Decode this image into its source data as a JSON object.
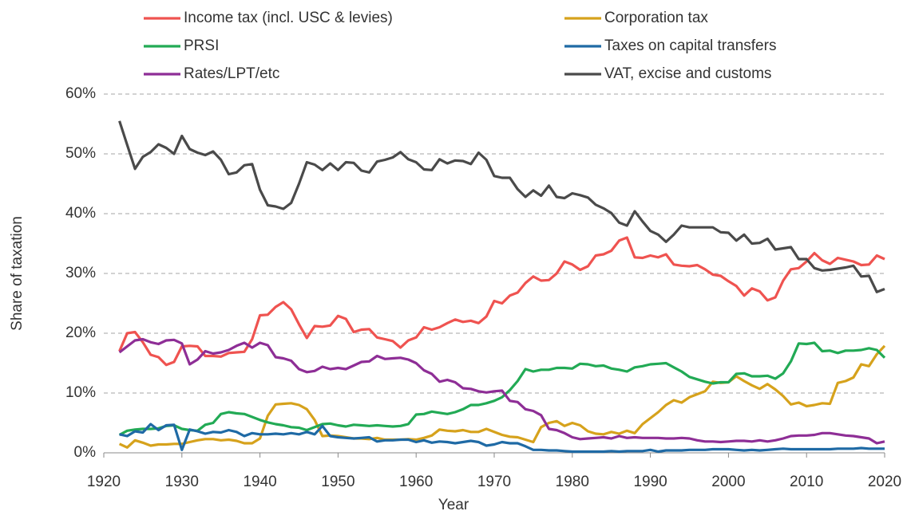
{
  "chart_data": {
    "type": "line",
    "x_label": "Year",
    "y_label": "Share of taxation",
    "x": [
      1922,
      1923,
      1924,
      1925,
      1926,
      1927,
      1928,
      1929,
      1930,
      1931,
      1932,
      1933,
      1934,
      1935,
      1936,
      1937,
      1938,
      1939,
      1940,
      1941,
      1942,
      1943,
      1944,
      1945,
      1946,
      1947,
      1948,
      1949,
      1950,
      1951,
      1952,
      1953,
      1954,
      1955,
      1956,
      1957,
      1958,
      1959,
      1960,
      1961,
      1962,
      1963,
      1964,
      1965,
      1966,
      1967,
      1968,
      1969,
      1970,
      1971,
      1972,
      1973,
      1974,
      1975,
      1976,
      1977,
      1978,
      1979,
      1980,
      1981,
      1982,
      1983,
      1984,
      1985,
      1986,
      1987,
      1988,
      1989,
      1990,
      1991,
      1992,
      1993,
      1994,
      1995,
      1996,
      1997,
      1998,
      1999,
      2000,
      2001,
      2002,
      2003,
      2004,
      2005,
      2006,
      2007,
      2008,
      2009,
      2010,
      2011,
      2012,
      2013,
      2014,
      2015,
      2016,
      2017,
      2018,
      2019,
      2020
    ],
    "series": [
      {
        "name": "Income tax (incl. USC & levies)",
        "color": "#ef5350",
        "values": [
          17,
          20,
          20.2,
          18.5,
          16.4,
          16,
          14.7,
          15.2,
          17.8,
          17.9,
          17.8,
          16.2,
          16.2,
          16.1,
          16.7,
          16.8,
          16.9,
          19,
          23,
          23.1,
          24.4,
          25.2,
          24,
          21.5,
          19.2,
          21.2,
          21.1,
          21.3,
          22.9,
          22.4,
          20.2,
          20.6,
          20.7,
          19.3,
          19,
          18.7,
          17.6,
          18.8,
          19.3,
          21,
          20.6,
          21,
          21.7,
          22.3,
          21.9,
          22.1,
          21.7,
          22.8,
          25.4,
          25,
          26.3,
          26.8,
          28.4,
          29.5,
          28.8,
          28.9,
          30,
          32,
          31.5,
          30.6,
          31.2,
          33,
          33.2,
          33.8,
          35.5,
          36,
          32.7,
          32.6,
          33,
          32.7,
          33.2,
          31.5,
          31.3,
          31.2,
          31.4,
          30.7,
          29.8,
          29.6,
          28.7,
          27.9,
          26.3,
          27.5,
          27,
          25.5,
          26,
          28.8,
          30.7,
          30.9,
          32,
          33.4,
          32.2,
          31.6,
          32.6,
          32.3,
          32,
          31.4,
          31.5,
          33,
          32.4
        ]
      },
      {
        "name": "Corporation tax",
        "color": "#d6a21c",
        "values": [
          1.5,
          0.9,
          2.1,
          1.7,
          1.2,
          1.4,
          1.4,
          1.5,
          1.5,
          1.8,
          2.1,
          2.3,
          2.3,
          2.1,
          2.2,
          2,
          1.6,
          1.6,
          2.4,
          6.2,
          8.1,
          8.2,
          8.3,
          8,
          7.3,
          5.5,
          2.8,
          2.9,
          2.8,
          2.6,
          2.4,
          2.4,
          2.3,
          2.5,
          2.2,
          2.2,
          2.2,
          2.3,
          2.2,
          2.5,
          2.9,
          3.9,
          3.7,
          3.6,
          3.8,
          3.5,
          3.5,
          4,
          3.5,
          3,
          2.7,
          2.6,
          2.2,
          1.8,
          4.3,
          5,
          5.3,
          4.5,
          5,
          4.6,
          3.6,
          3.2,
          3.1,
          3.5,
          3.2,
          3.7,
          3.3,
          4.8,
          5.8,
          6.8,
          8,
          8.8,
          8.4,
          9.3,
          9.8,
          10.3,
          11.9,
          11.7,
          11.8,
          12.8,
          12,
          11.3,
          10.7,
          11.5,
          10.6,
          9.5,
          8.1,
          8.4,
          7.8,
          8,
          8.3,
          8.2,
          11.7,
          12,
          12.6,
          14.8,
          14.5,
          16.5,
          17.9
        ]
      },
      {
        "name": "PRSI",
        "color": "#22aa55",
        "values": [
          3,
          3.7,
          3.9,
          4,
          4,
          4.1,
          4.5,
          4.6,
          4,
          3.8,
          3.7,
          4.7,
          5,
          6.5,
          6.8,
          6.6,
          6.5,
          6,
          5.5,
          5.1,
          4.8,
          4.6,
          4.3,
          4.2,
          3.8,
          4.3,
          4.8,
          4.9,
          4.6,
          4.4,
          4.7,
          4.6,
          4.5,
          4.6,
          4.5,
          4.4,
          4.5,
          4.8,
          6.4,
          6.5,
          6.9,
          6.7,
          6.5,
          6.8,
          7.3,
          8,
          8,
          8.3,
          8.7,
          9.3,
          10.5,
          12,
          14,
          13.6,
          13.9,
          13.9,
          14.2,
          14.2,
          14.1,
          14.9,
          14.8,
          14.5,
          14.6,
          14.1,
          13.9,
          13.6,
          14.3,
          14.5,
          14.8,
          14.9,
          15,
          14.3,
          13.6,
          12.7,
          12.3,
          11.9,
          11.6,
          11.8,
          11.8,
          13.2,
          13.3,
          12.8,
          12.8,
          12.9,
          12.4,
          13.3,
          15.3,
          18.3,
          18.2,
          18.4,
          17,
          17.1,
          16.7,
          17.1,
          17.1,
          17.2,
          17.5,
          17.2,
          15.9
        ]
      },
      {
        "name": "Taxes on capital transfers",
        "color": "#1f6aa5",
        "values": [
          3.1,
          2.8,
          3.6,
          3.4,
          4.8,
          3.8,
          4.6,
          4.7,
          0.5,
          3.9,
          3.6,
          3.2,
          3.5,
          3.4,
          3.8,
          3.5,
          2.8,
          3.3,
          3.1,
          3.1,
          3.2,
          3.1,
          3.3,
          3.1,
          3.5,
          3.1,
          4.5,
          2.8,
          2.6,
          2.5,
          2.4,
          2.5,
          2.6,
          1.9,
          2.1,
          2.1,
          2.2,
          2.2,
          1.8,
          2.1,
          1.7,
          1.9,
          1.8,
          1.6,
          1.8,
          2,
          1.8,
          1.2,
          1.4,
          1.8,
          1.6,
          1.6,
          1.1,
          0.5,
          0.5,
          0.4,
          0.4,
          0.3,
          0.2,
          0.2,
          0.2,
          0.2,
          0.2,
          0.3,
          0.2,
          0.3,
          0.3,
          0.3,
          0.5,
          0.2,
          0.4,
          0.4,
          0.4,
          0.5,
          0.5,
          0.5,
          0.6,
          0.6,
          0.6,
          0.5,
          0.4,
          0.5,
          0.4,
          0.5,
          0.6,
          0.7,
          0.6,
          0.6,
          0.6,
          0.6,
          0.6,
          0.6,
          0.7,
          0.7,
          0.7,
          0.8,
          0.7,
          0.7,
          0.7
        ]
      },
      {
        "name": "Rates/LPT/etc",
        "color": "#8e2e96",
        "values": [
          16.8,
          17.8,
          18.8,
          19,
          18.5,
          18.2,
          18.8,
          18.9,
          18.3,
          14.8,
          15.6,
          17,
          16.6,
          16.8,
          17.2,
          17.9,
          18.4,
          17.6,
          18.4,
          18,
          16,
          15.8,
          15.4,
          14,
          13.5,
          13.7,
          14.4,
          14,
          14.2,
          14,
          14.6,
          15.2,
          15.3,
          16.2,
          15.7,
          15.8,
          15.9,
          15.6,
          15,
          13.8,
          13.2,
          11.9,
          12.2,
          11.8,
          10.8,
          10.7,
          10.3,
          10.1,
          10.3,
          10.4,
          8.7,
          8.5,
          7.3,
          7,
          6.3,
          4,
          3.8,
          3.3,
          2.6,
          2.3,
          2.4,
          2.5,
          2.6,
          2.4,
          2.8,
          2.5,
          2.6,
          2.5,
          2.5,
          2.5,
          2.4,
          2.4,
          2.5,
          2.4,
          2.1,
          1.9,
          1.9,
          1.8,
          1.9,
          2,
          2,
          1.9,
          2.1,
          1.9,
          2.1,
          2.4,
          2.8,
          2.9,
          2.9,
          3,
          3.3,
          3.3,
          3.1,
          2.9,
          2.8,
          2.6,
          2.4,
          1.6,
          1.9
        ]
      },
      {
        "name": "VAT, excise and customs",
        "color": "#4a4a4a",
        "values": [
          55.5,
          51.5,
          47.5,
          49.5,
          50.3,
          51.6,
          51,
          50,
          53,
          50.8,
          50.2,
          49.8,
          50.4,
          49,
          46.6,
          46.9,
          48.1,
          48.3,
          44,
          41.4,
          41.2,
          40.8,
          41.8,
          45,
          48.6,
          48.2,
          47.3,
          48.4,
          47.3,
          48.6,
          48.5,
          47.2,
          46.9,
          48.7,
          49,
          49.4,
          50.3,
          49.1,
          48.6,
          47.4,
          47.3,
          49.1,
          48.4,
          48.9,
          48.8,
          48.3,
          50.2,
          49,
          46.3,
          46,
          46,
          44.1,
          42.8,
          43.9,
          43,
          44.7,
          42.8,
          42.6,
          43.4,
          43.1,
          42.7,
          41.5,
          40.9,
          40.1,
          38.5,
          38,
          40.4,
          38.7,
          37.1,
          36.5,
          35.3,
          36.5,
          38,
          37.7,
          37.7,
          37.7,
          37.7,
          36.9,
          36.8,
          35.5,
          36.5,
          35,
          35.1,
          35.8,
          34,
          34.2,
          34.4,
          32.4,
          32.4,
          30.9,
          30.5,
          30.6,
          30.8,
          31,
          31.3,
          29.5,
          29.6,
          26.9,
          27.4
        ]
      }
    ],
    "xlim": [
      1920,
      2020
    ],
    "xticks": [
      1920,
      1930,
      1940,
      1950,
      1960,
      1970,
      1980,
      1990,
      2000,
      2010,
      2020
    ],
    "ylim": [
      0,
      60
    ],
    "yticks": [
      {
        "value": 0,
        "label": "0%"
      },
      {
        "value": 10,
        "label": "10%"
      },
      {
        "value": 20,
        "label": "20%"
      },
      {
        "value": 30,
        "label": "30%"
      },
      {
        "value": 40,
        "label": "40%"
      },
      {
        "value": 50,
        "label": "50%"
      },
      {
        "value": 60,
        "label": "60%"
      }
    ],
    "grid": true,
    "legend": "top"
  }
}
